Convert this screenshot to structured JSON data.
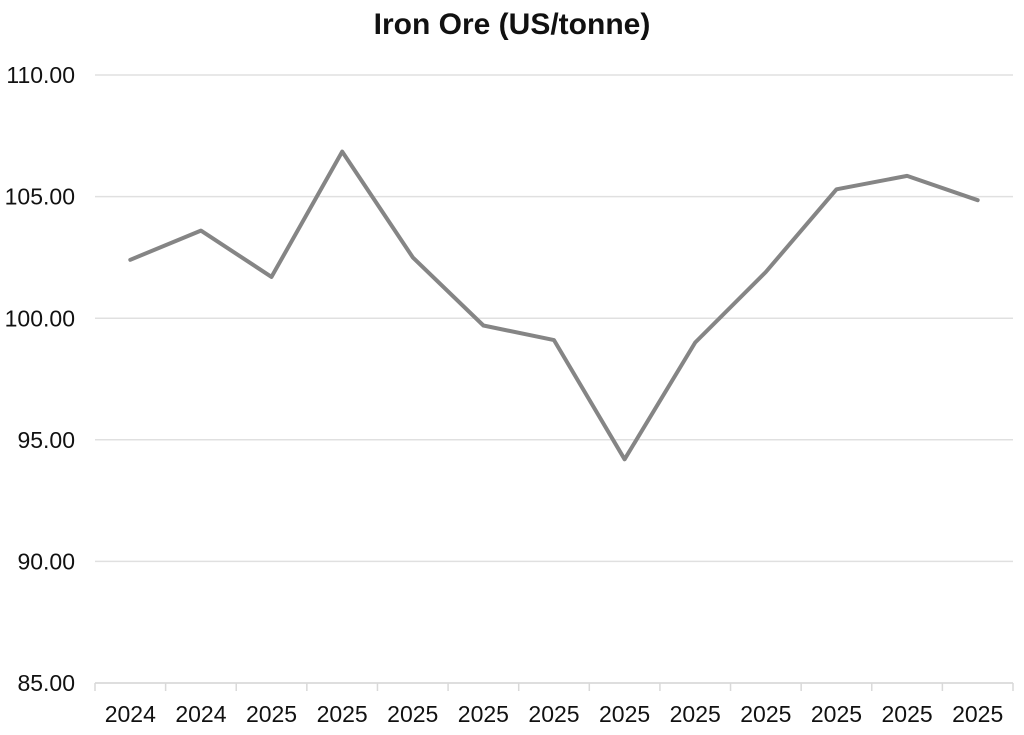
{
  "chart_data": {
    "type": "line",
    "title": "Iron Ore (US/tonne)",
    "categories": [
      "2024",
      "2024",
      "2025",
      "2025",
      "2025",
      "2025",
      "2025",
      "2025",
      "2025",
      "2025",
      "2025",
      "2025",
      "2025"
    ],
    "values": [
      102.4,
      103.6,
      101.7,
      106.85,
      102.5,
      99.7,
      99.1,
      94.2,
      99.0,
      101.9,
      105.3,
      105.85,
      104.85
    ],
    "xlabel": "",
    "ylabel": "",
    "ylim": [
      85,
      110
    ],
    "ytick_step": 5,
    "ytick_decimals": 2,
    "grid": true,
    "legend": "none",
    "colors": {
      "line": "#858585",
      "gridline": "#e0e0e0",
      "axis": "#d9d9d9",
      "label": "#111111",
      "background": "#ffffff"
    }
  }
}
